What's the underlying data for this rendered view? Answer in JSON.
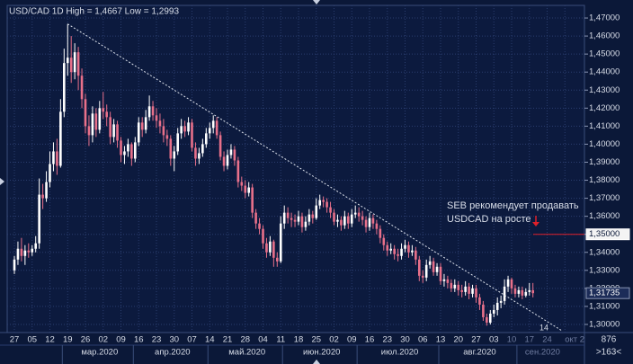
{
  "chart_data": {
    "type": "candlestick",
    "title": "USD/CAD 1D High = 1,4667 Low = 1,2993",
    "annotation": [
      "SEB рекомендует продавать",
      "USDCAD на росте"
    ],
    "corner_text": "14",
    "right_footer": [
      "876",
      ">163<"
    ],
    "ylim": [
      1.2955,
      1.477
    ],
    "yticks": [
      {
        "value": 1.47,
        "label": "1,47000"
      },
      {
        "value": 1.46,
        "label": "1,46000"
      },
      {
        "value": 1.45,
        "label": "1,45000"
      },
      {
        "value": 1.44,
        "label": "1,44000"
      },
      {
        "value": 1.43,
        "label": "1,43000"
      },
      {
        "value": 1.42,
        "label": "1,42000"
      },
      {
        "value": 1.41,
        "label": "1,41000"
      },
      {
        "value": 1.4,
        "label": "1,40000"
      },
      {
        "value": 1.39,
        "label": "1,39000"
      },
      {
        "value": 1.38,
        "label": "1,38000"
      },
      {
        "value": 1.37,
        "label": "1,37000"
      },
      {
        "value": 1.36,
        "label": "1,36000"
      },
      {
        "value": 1.35,
        "label": "1,35000"
      },
      {
        "value": 1.34,
        "label": "1,34000"
      },
      {
        "value": 1.33,
        "label": "1,33000"
      },
      {
        "value": 1.32,
        "label": "1,32000"
      },
      {
        "value": 1.31,
        "label": "1,31000"
      },
      {
        "value": 1.3,
        "label": "1,30000"
      }
    ],
    "price_labels": [
      {
        "value": 1.35,
        "label": "1,35000"
      },
      {
        "value": 1.31735,
        "label": "1,31735"
      }
    ],
    "level": 1.35,
    "level_color": "#e0202a",
    "trendline": [
      1.4667,
      1.2965
    ],
    "up_color": "#ffffff",
    "down_color": "#e8708a",
    "grid": true,
    "x_labels": [
      "27",
      "05",
      "12",
      "19",
      "26",
      "02",
      "09",
      "16",
      "23",
      "30",
      "07",
      "14",
      "21",
      "28",
      "04",
      "11",
      "18",
      "25",
      "02",
      "09",
      "16",
      "23",
      "30",
      "06",
      "13",
      "20",
      "27",
      "03",
      "10",
      "17",
      "24",
      "окт 2"
    ],
    "month_labels": [
      "мар.2020",
      "апр.2020",
      "май.2020",
      "июн.2020",
      "июл.2020",
      "авг.2020",
      "сен.2020"
    ],
    "ohlc": [
      [
        1.33,
        1.338,
        1.328,
        1.336
      ],
      [
        1.336,
        1.346,
        1.333,
        1.342
      ],
      [
        1.342,
        1.348,
        1.335,
        1.338
      ],
      [
        1.338,
        1.344,
        1.333,
        1.341
      ],
      [
        1.341,
        1.345,
        1.337,
        1.34
      ],
      [
        1.34,
        1.344,
        1.338,
        1.342
      ],
      [
        1.342,
        1.349,
        1.34,
        1.345
      ],
      [
        1.345,
        1.381,
        1.342,
        1.372
      ],
      [
        1.372,
        1.378,
        1.364,
        1.37
      ],
      [
        1.37,
        1.385,
        1.368,
        1.379
      ],
      [
        1.379,
        1.396,
        1.376,
        1.389
      ],
      [
        1.389,
        1.401,
        1.385,
        1.396
      ],
      [
        1.396,
        1.403,
        1.383,
        1.388
      ],
      [
        1.388,
        1.425,
        1.387,
        1.418
      ],
      [
        1.418,
        1.453,
        1.415,
        1.445
      ],
      [
        1.445,
        1.4667,
        1.438,
        1.448
      ],
      [
        1.448,
        1.46,
        1.434,
        1.44
      ],
      [
        1.44,
        1.456,
        1.436,
        1.451
      ],
      [
        1.451,
        1.454,
        1.43,
        1.438
      ],
      [
        1.438,
        1.442,
        1.42,
        1.425
      ],
      [
        1.425,
        1.428,
        1.406,
        1.41
      ],
      [
        1.41,
        1.416,
        1.399,
        1.405
      ],
      [
        1.405,
        1.421,
        1.401,
        1.417
      ],
      [
        1.417,
        1.42,
        1.404,
        1.408
      ],
      [
        1.408,
        1.424,
        1.406,
        1.42
      ],
      [
        1.42,
        1.429,
        1.414,
        1.418
      ],
      [
        1.418,
        1.422,
        1.41,
        1.415
      ],
      [
        1.415,
        1.418,
        1.4,
        1.404
      ],
      [
        1.404,
        1.414,
        1.401,
        1.411
      ],
      [
        1.411,
        1.413,
        1.398,
        1.402
      ],
      [
        1.402,
        1.404,
        1.39,
        1.394
      ],
      [
        1.394,
        1.399,
        1.389,
        1.396
      ],
      [
        1.396,
        1.403,
        1.393,
        1.4
      ],
      [
        1.4,
        1.401,
        1.388,
        1.392
      ],
      [
        1.392,
        1.404,
        1.39,
        1.401
      ],
      [
        1.401,
        1.415,
        1.399,
        1.412
      ],
      [
        1.412,
        1.415,
        1.404,
        1.408
      ],
      [
        1.408,
        1.419,
        1.406,
        1.415
      ],
      [
        1.415,
        1.427,
        1.413,
        1.421
      ],
      [
        1.421,
        1.424,
        1.413,
        1.416
      ],
      [
        1.416,
        1.42,
        1.409,
        1.413
      ],
      [
        1.413,
        1.417,
        1.406,
        1.41
      ],
      [
        1.41,
        1.414,
        1.401,
        1.405
      ],
      [
        1.405,
        1.408,
        1.399,
        1.403
      ],
      [
        1.403,
        1.405,
        1.388,
        1.392
      ],
      [
        1.392,
        1.399,
        1.385,
        1.396
      ],
      [
        1.396,
        1.409,
        1.394,
        1.406
      ],
      [
        1.406,
        1.414,
        1.403,
        1.41
      ],
      [
        1.41,
        1.413,
        1.404,
        1.407
      ],
      [
        1.407,
        1.415,
        1.405,
        1.412
      ],
      [
        1.412,
        1.414,
        1.396,
        1.398
      ],
      [
        1.398,
        1.401,
        1.388,
        1.392
      ],
      [
        1.392,
        1.398,
        1.389,
        1.395
      ],
      [
        1.395,
        1.403,
        1.393,
        1.4
      ],
      [
        1.4,
        1.409,
        1.398,
        1.406
      ],
      [
        1.406,
        1.412,
        1.403,
        1.409
      ],
      [
        1.409,
        1.416,
        1.406,
        1.413
      ],
      [
        1.413,
        1.415,
        1.403,
        1.405
      ],
      [
        1.405,
        1.407,
        1.391,
        1.393
      ],
      [
        1.393,
        1.396,
        1.385,
        1.388
      ],
      [
        1.388,
        1.397,
        1.386,
        1.394
      ],
      [
        1.394,
        1.4,
        1.392,
        1.397
      ],
      [
        1.397,
        1.399,
        1.388,
        1.391
      ],
      [
        1.391,
        1.393,
        1.376,
        1.379
      ],
      [
        1.379,
        1.382,
        1.374,
        1.377
      ],
      [
        1.377,
        1.38,
        1.37,
        1.373
      ],
      [
        1.373,
        1.379,
        1.371,
        1.376
      ],
      [
        1.376,
        1.378,
        1.359,
        1.362
      ],
      [
        1.362,
        1.364,
        1.353,
        1.356
      ],
      [
        1.356,
        1.359,
        1.35,
        1.353
      ],
      [
        1.353,
        1.355,
        1.342,
        1.345
      ],
      [
        1.345,
        1.348,
        1.337,
        1.34
      ],
      [
        1.34,
        1.349,
        1.338,
        1.346
      ],
      [
        1.346,
        1.347,
        1.332,
        1.337
      ],
      [
        1.337,
        1.34,
        1.332,
        1.335
      ],
      [
        1.335,
        1.36,
        1.334,
        1.356
      ],
      [
        1.356,
        1.366,
        1.353,
        1.362
      ],
      [
        1.362,
        1.365,
        1.356,
        1.359
      ],
      [
        1.359,
        1.362,
        1.354,
        1.358
      ],
      [
        1.358,
        1.361,
        1.354,
        1.357
      ],
      [
        1.357,
        1.363,
        1.355,
        1.36
      ],
      [
        1.36,
        1.362,
        1.351,
        1.354
      ],
      [
        1.354,
        1.36,
        1.352,
        1.357
      ],
      [
        1.357,
        1.364,
        1.355,
        1.361
      ],
      [
        1.361,
        1.363,
        1.356,
        1.359
      ],
      [
        1.359,
        1.37,
        1.358,
        1.366
      ],
      [
        1.366,
        1.372,
        1.364,
        1.369
      ],
      [
        1.369,
        1.371,
        1.365,
        1.368
      ],
      [
        1.368,
        1.37,
        1.362,
        1.365
      ],
      [
        1.365,
        1.368,
        1.359,
        1.362
      ],
      [
        1.362,
        1.364,
        1.355,
        1.357
      ],
      [
        1.357,
        1.361,
        1.354,
        1.358
      ],
      [
        1.358,
        1.36,
        1.352,
        1.355
      ],
      [
        1.355,
        1.363,
        1.353,
        1.36
      ],
      [
        1.36,
        1.362,
        1.353,
        1.356
      ],
      [
        1.356,
        1.364,
        1.354,
        1.361
      ],
      [
        1.361,
        1.366,
        1.359,
        1.362
      ],
      [
        1.362,
        1.365,
        1.357,
        1.36
      ],
      [
        1.36,
        1.363,
        1.355,
        1.358
      ],
      [
        1.358,
        1.36,
        1.351,
        1.354
      ],
      [
        1.354,
        1.362,
        1.352,
        1.359
      ],
      [
        1.359,
        1.361,
        1.353,
        1.356
      ],
      [
        1.356,
        1.358,
        1.35,
        1.353
      ],
      [
        1.353,
        1.355,
        1.345,
        1.348
      ],
      [
        1.348,
        1.35,
        1.341,
        1.344
      ],
      [
        1.344,
        1.346,
        1.338,
        1.341
      ],
      [
        1.341,
        1.345,
        1.339,
        1.342
      ],
      [
        1.342,
        1.344,
        1.336,
        1.339
      ],
      [
        1.339,
        1.342,
        1.335,
        1.338
      ],
      [
        1.338,
        1.345,
        1.336,
        1.342
      ],
      [
        1.342,
        1.347,
        1.34,
        1.344
      ],
      [
        1.344,
        1.346,
        1.337,
        1.34
      ],
      [
        1.34,
        1.344,
        1.338,
        1.341
      ],
      [
        1.341,
        1.343,
        1.333,
        1.336
      ],
      [
        1.336,
        1.338,
        1.324,
        1.327
      ],
      [
        1.327,
        1.33,
        1.323,
        1.326
      ],
      [
        1.326,
        1.336,
        1.324,
        1.333
      ],
      [
        1.333,
        1.338,
        1.331,
        1.335
      ],
      [
        1.335,
        1.337,
        1.327,
        1.329
      ],
      [
        1.329,
        1.334,
        1.327,
        1.332
      ],
      [
        1.332,
        1.334,
        1.322,
        1.324
      ],
      [
        1.324,
        1.328,
        1.321,
        1.325
      ],
      [
        1.325,
        1.327,
        1.32,
        1.323
      ],
      [
        1.323,
        1.325,
        1.318,
        1.32
      ],
      [
        1.32,
        1.325,
        1.318,
        1.322
      ],
      [
        1.322,
        1.324,
        1.316,
        1.319
      ],
      [
        1.319,
        1.322,
        1.315,
        1.318
      ],
      [
        1.318,
        1.324,
        1.316,
        1.321
      ],
      [
        1.321,
        1.323,
        1.314,
        1.317
      ],
      [
        1.317,
        1.322,
        1.315,
        1.32
      ],
      [
        1.32,
        1.322,
        1.312,
        1.315
      ],
      [
        1.315,
        1.317,
        1.308,
        1.311
      ],
      [
        1.311,
        1.313,
        1.302,
        1.304
      ],
      [
        1.304,
        1.306,
        1.2993,
        1.301
      ],
      [
        1.301,
        1.308,
        1.3,
        1.306
      ],
      [
        1.306,
        1.311,
        1.304,
        1.308
      ],
      [
        1.308,
        1.315,
        1.305,
        1.312
      ],
      [
        1.312,
        1.316,
        1.309,
        1.313
      ],
      [
        1.313,
        1.325,
        1.311,
        1.321
      ],
      [
        1.321,
        1.327,
        1.318,
        1.325
      ],
      [
        1.325,
        1.326,
        1.317,
        1.32
      ],
      [
        1.32,
        1.322,
        1.315,
        1.317
      ],
      [
        1.317,
        1.321,
        1.315,
        1.319
      ],
      [
        1.319,
        1.321,
        1.314,
        1.316
      ],
      [
        1.316,
        1.32,
        1.315,
        1.318
      ],
      [
        1.318,
        1.323,
        1.316,
        1.319
      ],
      [
        1.319,
        1.323,
        1.315,
        1.31735
      ]
    ]
  }
}
